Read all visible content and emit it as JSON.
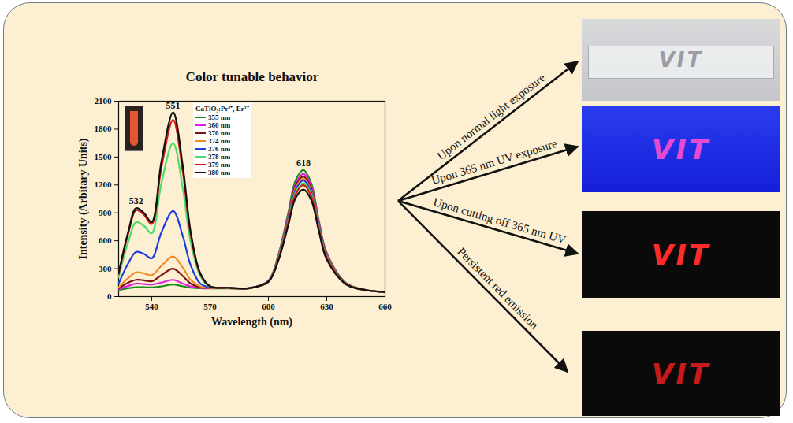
{
  "chart_data": {
    "type": "line",
    "title": "Color tunable behavior",
    "x_label": "Wavelength (nm)",
    "y_label": "Intensity (Arbitary Units)",
    "legend_title": "CaTiO₃:Pr³⁺, Er³⁺",
    "legend": "top",
    "grid": false,
    "xlim": [
      523,
      660
    ],
    "xticks": [
      540,
      570,
      600,
      630,
      660
    ],
    "ylim": [
      0,
      2100
    ],
    "yticks": [
      0,
      300,
      600,
      900,
      1200,
      1500,
      1800,
      2100
    ],
    "x": [
      523,
      528,
      532,
      536,
      540,
      545,
      551,
      556,
      560,
      565,
      570,
      580,
      590,
      600,
      605,
      610,
      614,
      618,
      622,
      626,
      630,
      640,
      650,
      660
    ],
    "series": [
      {
        "name": "355 nm",
        "color": "#1a8a1a",
        "values": [
          70,
          90,
          100,
          100,
          98,
          110,
          130,
          110,
          95,
          90,
          88,
          88,
          88,
          170,
          440,
          880,
          1250,
          1360,
          1220,
          810,
          470,
          145,
          72,
          50
        ]
      },
      {
        "name": "360 nm",
        "color": "#e020e0",
        "values": [
          80,
          115,
          140,
          135,
          130,
          150,
          180,
          140,
          110,
          95,
          90,
          90,
          90,
          170,
          430,
          850,
          1210,
          1320,
          1190,
          790,
          460,
          140,
          70,
          50
        ]
      },
      {
        "name": "370 nm",
        "color": "#7a1010",
        "values": [
          90,
          150,
          180,
          175,
          165,
          230,
          300,
          220,
          140,
          100,
          95,
          90,
          90,
          165,
          420,
          830,
          1190,
          1290,
          1160,
          770,
          450,
          140,
          70,
          50
        ]
      },
      {
        "name": "374 nm",
        "color": "#f08c28",
        "values": [
          100,
          200,
          260,
          250,
          230,
          330,
          430,
          310,
          180,
          110,
          95,
          90,
          90,
          165,
          420,
          820,
          1170,
          1270,
          1140,
          760,
          445,
          135,
          70,
          50
        ]
      },
      {
        "name": "376 nm",
        "color": "#1f3fe0",
        "values": [
          140,
          360,
          480,
          460,
          410,
          690,
          920,
          650,
          340,
          140,
          100,
          95,
          90,
          165,
          410,
          810,
          1150,
          1250,
          1120,
          750,
          440,
          135,
          70,
          50
        ]
      },
      {
        "name": "378 nm",
        "color": "#4fdc6a",
        "values": [
          210,
          590,
          800,
          760,
          680,
          1220,
          1650,
          1160,
          590,
          220,
          105,
          95,
          90,
          160,
          400,
          790,
          1120,
          1220,
          1100,
          730,
          430,
          135,
          70,
          50
        ]
      },
      {
        "name": "379 nm",
        "color": "#d01818",
        "values": [
          240,
          680,
          930,
          880,
          780,
          1390,
          1900,
          1340,
          670,
          240,
          110,
          95,
          90,
          160,
          390,
          780,
          1100,
          1200,
          1080,
          720,
          420,
          135,
          70,
          50
        ]
      },
      {
        "name": "380 nm",
        "color": "#111111",
        "values": [
          250,
          700,
          950,
          900,
          800,
          1450,
          1980,
          1400,
          700,
          250,
          110,
          95,
          90,
          160,
          380,
          750,
          1060,
          1150,
          1040,
          700,
          400,
          130,
          70,
          50
        ]
      }
    ],
    "annotations": [
      {
        "text": "532",
        "x": 532,
        "y": 950
      },
      {
        "text": "551",
        "x": 551,
        "y": 1980
      },
      {
        "text": "618",
        "x": 618,
        "y": 1360
      }
    ]
  },
  "panels": [
    {
      "arrow_label": "Upon normal light exposure",
      "photo_text": "VIT"
    },
    {
      "arrow_label": "Upon 365 nm UV exposure",
      "photo_text": "VIT"
    },
    {
      "arrow_label": "Upon cutting off 365 nm UV",
      "photo_text": "VIT"
    },
    {
      "arrow_label": "Persistent red emission",
      "photo_text": "VIT"
    }
  ]
}
